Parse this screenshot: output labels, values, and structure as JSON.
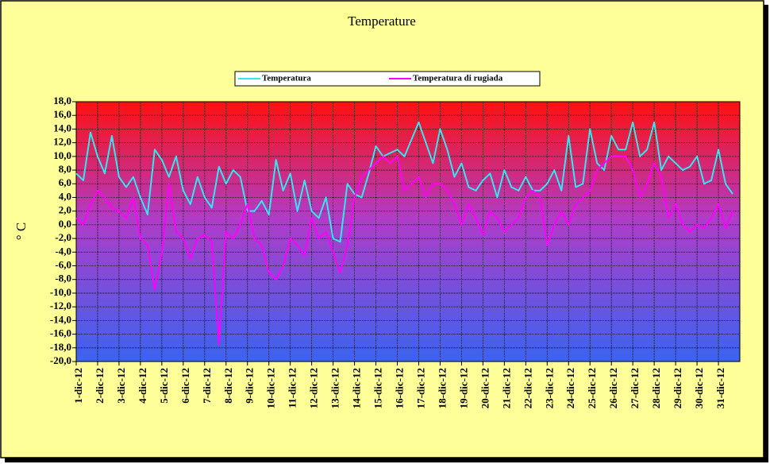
{
  "chart_data": {
    "type": "line",
    "title": "Temperature",
    "y_label": "° C",
    "categories": [
      "1-dic-12",
      null,
      null,
      "2-dic-12",
      null,
      null,
      "3-dic-12",
      null,
      null,
      "4-dic-12",
      null,
      null,
      "5-dic-12",
      null,
      null,
      "6-dic-12",
      null,
      null,
      "7-dic-12",
      null,
      null,
      "8-dic-12",
      null,
      null,
      "9-dic-12",
      null,
      null,
      "10-dic-12",
      null,
      null,
      "11-dic-12",
      null,
      null,
      "12-dic-12",
      null,
      null,
      "13-dic-12",
      null,
      null,
      "14-dic-12",
      null,
      null,
      "15-dic-12",
      null,
      null,
      "16-dic-12",
      null,
      null,
      "17-dic-12",
      null,
      null,
      "18-dic-12",
      null,
      null,
      "19-dic-12",
      null,
      null,
      "20-dic-12",
      null,
      null,
      "21-dic-12",
      null,
      null,
      "22-dic-12",
      null,
      null,
      "23-dic-12",
      null,
      null,
      "24-dic-12",
      null,
      null,
      "25-dic-12",
      null,
      null,
      "26-dic-12",
      null,
      null,
      "27-dic-12",
      null,
      null,
      "28-dic-12",
      null,
      null,
      "29-dic-12",
      null,
      null,
      "30-dic-12",
      null,
      null,
      "31-dic-12",
      null,
      null
    ],
    "series": [
      {
        "name": "Temperatura",
        "color": "#33e6f0",
        "values": [
          7.5,
          6.5,
          13.5,
          10,
          7.5,
          13,
          7,
          5.5,
          7,
          4,
          1.5,
          11,
          9.5,
          7,
          10,
          5,
          3,
          7,
          4,
          2.5,
          8.5,
          6,
          8,
          7,
          2,
          2,
          3.5,
          1.5,
          9.5,
          5,
          7.5,
          2,
          6.5,
          2,
          1,
          4,
          -2,
          -2.5,
          6,
          4.5,
          4,
          7.5,
          11.5,
          10,
          10.5,
          11,
          10,
          12.5,
          15,
          12,
          9,
          14,
          11,
          7,
          9,
          5.5,
          5,
          6.5,
          7.5,
          4,
          8,
          5.5,
          5,
          7,
          5,
          5,
          6,
          8,
          5,
          13,
          5.5,
          6,
          14,
          9,
          8,
          13,
          11,
          11,
          15,
          10,
          11,
          15,
          8,
          10,
          9,
          8,
          8.5,
          10,
          6,
          6.5,
          11,
          6,
          4.5
        ]
      },
      {
        "name": "Temperatura di rugiada",
        "color": "#ff00ff",
        "values": [
          1,
          0,
          3,
          5,
          4,
          2.5,
          2,
          1,
          4,
          -2,
          -3,
          -9.5,
          -4,
          6,
          -1,
          -2,
          -5,
          -2,
          -1.5,
          -2.5,
          -17.5,
          -1,
          -2,
          0,
          3,
          -2,
          -3,
          -7,
          -8,
          -6,
          -2,
          -3,
          -4.5,
          1,
          -2,
          -1,
          -4,
          -7,
          -3,
          4,
          7,
          8,
          9,
          10,
          9,
          10,
          5,
          6,
          7,
          4,
          6,
          6,
          5,
          3,
          0,
          3,
          1,
          -1.5,
          2,
          1,
          -1,
          0,
          1,
          4,
          5,
          4,
          -3,
          0,
          2,
          0,
          3,
          4,
          5,
          8,
          9,
          10,
          10,
          10,
          8,
          4,
          6,
          9,
          7,
          1,
          3,
          0,
          -1,
          0,
          -0.5,
          1,
          3,
          -0.5,
          2
        ]
      }
    ],
    "ylim": [
      -20,
      18
    ],
    "yticks": [
      {
        "value": -20,
        "label": "-20,0"
      },
      {
        "value": -18,
        "label": "-18,0"
      },
      {
        "value": -16,
        "label": "-16,0"
      },
      {
        "value": -14,
        "label": "-14,0"
      },
      {
        "value": -12,
        "label": "-12,0"
      },
      {
        "value": -10,
        "label": "-10,0"
      },
      {
        "value": -8,
        "label": "-8,0"
      },
      {
        "value": -6,
        "label": "-6,0"
      },
      {
        "value": -4,
        "label": "-4,0"
      },
      {
        "value": -2,
        "label": "-2,0"
      },
      {
        "value": 0,
        "label": "0,0"
      },
      {
        "value": 2,
        "label": "2,0"
      },
      {
        "value": 4,
        "label": "4,0"
      },
      {
        "value": 6,
        "label": "6,0"
      },
      {
        "value": 8,
        "label": "8,0"
      },
      {
        "value": 10,
        "label": "10,0"
      },
      {
        "value": 12,
        "label": "12,0"
      },
      {
        "value": 14,
        "label": "14,0"
      },
      {
        "value": 16,
        "label": "16,0"
      },
      {
        "value": 18,
        "label": "18,0"
      }
    ],
    "grid": true,
    "legend": "top"
  }
}
